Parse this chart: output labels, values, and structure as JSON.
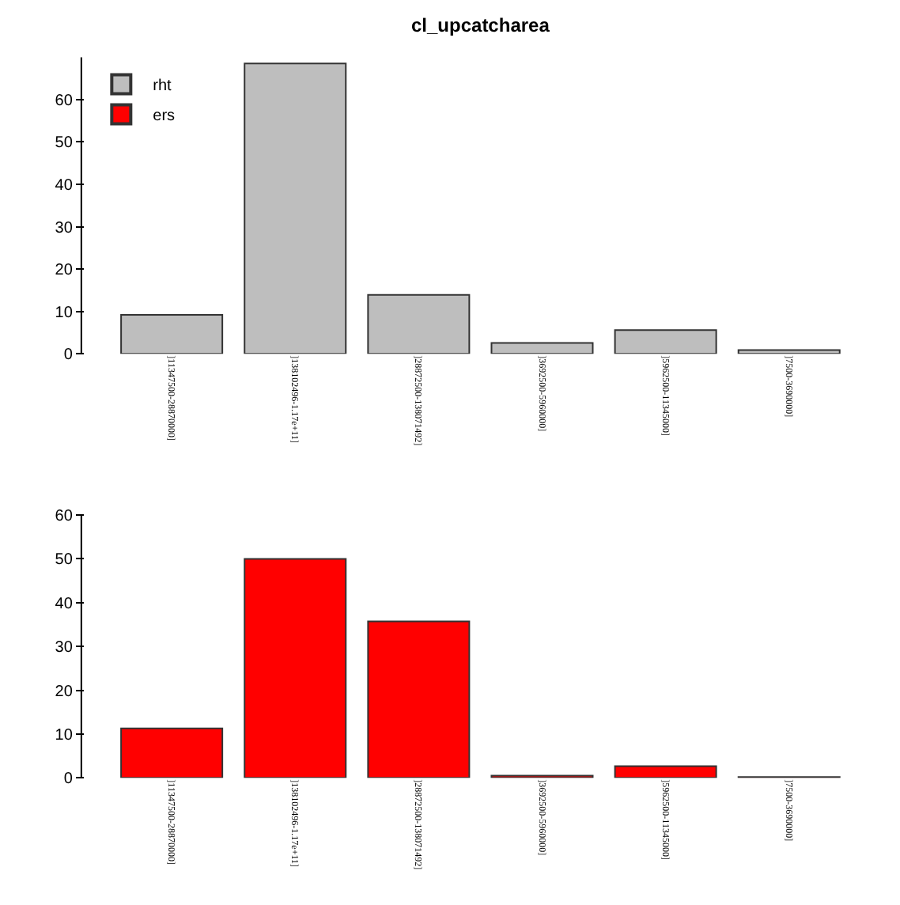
{
  "chart_data": [
    {
      "type": "bar",
      "title": "cl_upcatcharea",
      "categories": [
        "]11347500-28870000]",
        "]138102496-1.17e+11]",
        "]28872500-138071492]",
        "]3692500-5960000]",
        "]5962500-11345000]",
        "]7500-3690000]"
      ],
      "series": [
        {
          "name": "rht",
          "color": "#bebebe",
          "values": [
            9.2,
            68.5,
            13.9,
            2.6,
            5.6,
            0.9
          ]
        }
      ],
      "ylim": [
        0,
        70
      ],
      "yticks": [
        0,
        10,
        20,
        30,
        40,
        50,
        60
      ],
      "legend": "top left"
    },
    {
      "type": "bar",
      "categories": [
        "]11347500-28870000]",
        "]138102496-1.17e+11]",
        "]28872500-138071492]",
        "]3692500-5960000]",
        "]5962500-11345000]",
        "]7500-3690000]"
      ],
      "series": [
        {
          "name": "ers",
          "color": "#ff0000",
          "values": [
            11.3,
            50,
            35.7,
            0.5,
            2.7,
            0.2
          ]
        }
      ],
      "ylim": [
        0,
        60
      ],
      "yticks": [
        0,
        10,
        20,
        30,
        40,
        50,
        60
      ]
    }
  ]
}
